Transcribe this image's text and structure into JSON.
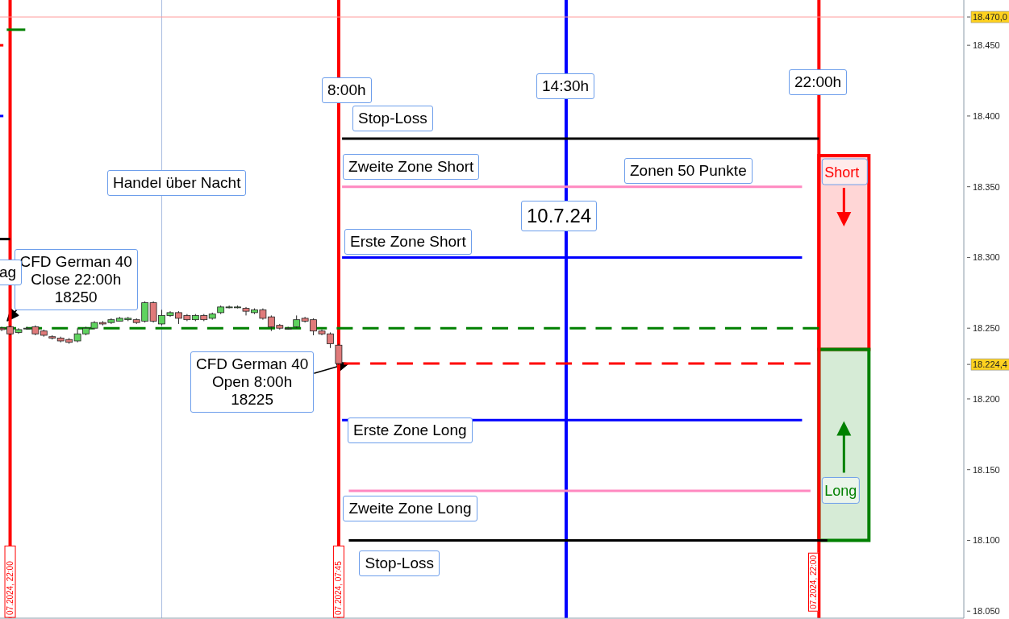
{
  "chart_data": {
    "type": "candlestick",
    "x": [
      "2024-07-09T21:45",
      "2024-07-09T22:00",
      "2024-07-09T22:15",
      "2024-07-09T22:30",
      "2024-07-09T22:45",
      "2024-07-09T23:00",
      "2024-07-09T23:15",
      "2024-07-09T23:30",
      "2024-07-09T23:45",
      "2024-07-10T00:00",
      "2024-07-10T00:15",
      "2024-07-10T00:30",
      "2024-07-10T00:45",
      "2024-07-10T01:00",
      "2024-07-10T01:15",
      "2024-07-10T01:30",
      "2024-07-10T01:45",
      "2024-07-10T02:00",
      "2024-07-10T02:15",
      "2024-07-10T02:30",
      "2024-07-10T02:45",
      "2024-07-10T03:00",
      "2024-07-10T03:15",
      "2024-07-10T03:30",
      "2024-07-10T03:45",
      "2024-07-10T04:00",
      "2024-07-10T04:15",
      "2024-07-10T04:30",
      "2024-07-10T04:45",
      "2024-07-10T05:00",
      "2024-07-10T05:15",
      "2024-07-10T05:30",
      "2024-07-10T05:45",
      "2024-07-10T06:00",
      "2024-07-10T06:15",
      "2024-07-10T06:30",
      "2024-07-10T06:45",
      "2024-07-10T07:00",
      "2024-07-10T07:15",
      "2024-07-10T07:30",
      "2024-07-10T07:45"
    ],
    "ohlc": [
      [
        18250,
        18251,
        18248,
        18249
      ],
      [
        18251,
        18252,
        18245,
        18246
      ],
      [
        18247,
        18250,
        18246,
        18249
      ],
      [
        18250,
        18251,
        18249,
        18250
      ],
      [
        18251,
        18252,
        18245,
        18246
      ],
      [
        18248,
        18249,
        18244,
        18245
      ],
      [
        18244,
        18245,
        18242,
        18243
      ],
      [
        18243,
        18244,
        18240,
        18241
      ],
      [
        18242,
        18243,
        18239,
        18240
      ],
      [
        18241,
        18250,
        18240,
        18246
      ],
      [
        18246,
        18251,
        18245,
        18250
      ],
      [
        18250,
        18255,
        18249,
        18254
      ],
      [
        18254,
        18255,
        18252,
        18253
      ],
      [
        18254,
        18257,
        18253,
        18256
      ],
      [
        18255,
        18258,
        18255,
        18257
      ],
      [
        18256,
        18258,
        18255,
        18257
      ],
      [
        18256,
        18257,
        18253,
        18254
      ],
      [
        18255,
        18269,
        18254,
        18268
      ],
      [
        18268,
        18269,
        18254,
        18255
      ],
      [
        18253,
        18263,
        18252,
        18259
      ],
      [
        18259,
        18262,
        18258,
        18261
      ],
      [
        18261,
        18262,
        18253,
        18257
      ],
      [
        18259,
        18260,
        18255,
        18256
      ],
      [
        18256,
        18260,
        18255,
        18259
      ],
      [
        18259,
        18260,
        18255,
        18256
      ],
      [
        18257,
        18261,
        18256,
        18260
      ],
      [
        18261,
        18266,
        18260,
        18265
      ],
      [
        18265,
        18266,
        18264,
        18265
      ],
      [
        18265,
        18266,
        18264,
        18265
      ],
      [
        18264,
        18265,
        18259,
        18262
      ],
      [
        18261,
        18264,
        18260,
        18263
      ],
      [
        18263,
        18264,
        18256,
        18257
      ],
      [
        18258,
        18259,
        18248,
        18251
      ],
      [
        18252,
        18253,
        18249,
        18250
      ],
      [
        18250,
        18251,
        18249,
        18250
      ],
      [
        18251,
        18259,
        18250,
        18256
      ],
      [
        18257,
        18258,
        18254,
        18255
      ],
      [
        18256,
        18257,
        18245,
        18248
      ],
      [
        18248,
        18249,
        18245,
        18246
      ],
      [
        18246,
        18247,
        18236,
        18239
      ],
      [
        18238,
        18239,
        18224,
        18225
      ]
    ],
    "series": [
      {
        "type": "line",
        "color": "#000000",
        "x": [
          "2024-07-10T07:51",
          "2024-07-10T22:00"
        ],
        "values": [
          18384,
          18384
        ]
      },
      {
        "type": "line",
        "color": "#ff88c0",
        "x": [
          "2024-07-10T07:51",
          "2024-07-10T21:30"
        ],
        "values": [
          18350,
          18350
        ]
      },
      {
        "type": "line",
        "color": "#0000ff",
        "x": [
          "2024-07-10T07:51",
          "2024-07-10T21:30"
        ],
        "values": [
          18300,
          18300
        ]
      },
      {
        "type": "line",
        "color": "#008000",
        "line_style": "dashed",
        "x": [
          "2024-07-09T21:42",
          "2024-07-10T22:00"
        ],
        "values": [
          18250,
          18250
        ]
      },
      {
        "type": "line",
        "color": "#ff0000",
        "line_style": "dashed",
        "x": [
          "2024-07-10T07:54",
          "2024-07-10T21:45"
        ],
        "values": [
          18225,
          18225
        ]
      },
      {
        "type": "line",
        "color": "#0000ff",
        "x": [
          "2024-07-10T07:51",
          "2024-07-10T21:30"
        ],
        "values": [
          18185,
          18185
        ]
      },
      {
        "type": "line",
        "color": "#ff88c0",
        "x": [
          "2024-07-10T08:03",
          "2024-07-10T21:45"
        ],
        "values": [
          18135,
          18135
        ]
      },
      {
        "type": "line",
        "color": "#000000",
        "x": [
          "2024-07-10T08:03",
          "2024-07-10T22:15"
        ],
        "values": [
          18100,
          18100
        ]
      },
      {
        "type": "line",
        "color": "#000000",
        "x": [
          "2024-07-09T21:42",
          "2024-07-09T22:00"
        ],
        "values": [
          18313,
          18313
        ]
      },
      {
        "type": "line",
        "color": "#ff0000",
        "x": [
          "2024-07-09T21:42",
          "2024-07-09T21:48"
        ],
        "values": [
          18450,
          18450
        ]
      },
      {
        "type": "line",
        "color": "#0000ff",
        "x": [
          "2024-07-09T21:42",
          "2024-07-09T21:48"
        ],
        "values": [
          18400,
          18400
        ]
      },
      {
        "type": "line",
        "color": "#008000",
        "x": [
          "2024-07-09T21:54",
          "2024-07-09T22:27"
        ],
        "values": [
          18461,
          18461
        ]
      }
    ],
    "marker": "none",
    "xlim": [
      "2024-07-09T21:42",
      "2024-07-11T02:18"
    ],
    "xticks": [
      {
        "value": "2024-07-09T22:00",
        "label": "07.2024, 22:00"
      },
      {
        "value": "2024-07-10T07:45",
        "label": "07.2024, 07:45"
      }
    ],
    "ylim": [
      18045,
      18482
    ],
    "yticks": [
      {
        "value": 18050,
        "label": "18.050"
      },
      {
        "value": 18100,
        "label": "18.100"
      },
      {
        "value": 18150,
        "label": "18.150"
      },
      {
        "value": 18200,
        "label": "18.200"
      },
      {
        "value": 18224.4,
        "label": "18.224,4"
      },
      {
        "value": 18250,
        "label": "18.250"
      },
      {
        "value": 18300,
        "label": "18.300"
      },
      {
        "value": 18350,
        "label": "18.350"
      },
      {
        "value": 18400,
        "label": "18.400"
      },
      {
        "value": 18450,
        "label": "18.450"
      },
      {
        "value": 18470,
        "label": "18.470,0"
      }
    ],
    "ref_lines": [
      {
        "axis": "x",
        "value": "2024-07-09T22:00",
        "color": "#ff0000"
      },
      {
        "axis": "x",
        "value": "2024-07-10T07:45",
        "color": "#ff0000"
      },
      {
        "axis": "x",
        "value": "2024-07-10T14:30",
        "color": "#0000ff"
      },
      {
        "axis": "x",
        "value": "2024-07-10T22:00",
        "color": "#ff0000"
      },
      {
        "axis": "x",
        "value": "2024-07-10T02:30",
        "color": "#a8bce0"
      },
      {
        "axis": "y",
        "value": 18470,
        "color": "#ff9a9a"
      }
    ],
    "bands": [
      {
        "axis": "y",
        "from": 18235,
        "to": 18372,
        "label": "Short",
        "color": "#ff0000"
      },
      {
        "axis": "y",
        "from": 18100,
        "to": 18235,
        "label": "Long",
        "color": "#008000"
      }
    ],
    "annotations": [
      {
        "text": "CFD German 40\nClose 22:00h\n18250",
        "x": "2024-07-09T22:00",
        "y": 18250
      },
      {
        "text": "CFD German 40\nOpen 8:00h\n18225",
        "x": "2024-07-10T07:45",
        "y": 18225
      },
      {
        "text": "Stop-Loss",
        "x": "2024-07-10T07:51",
        "y": 18384
      },
      {
        "text": "Zweite Zone Short",
        "x": "2024-07-10T07:51",
        "y": 18350
      },
      {
        "text": "Erste Zone Short",
        "x": "2024-07-10T07:51",
        "y": 18300
      },
      {
        "text": "Erste Zone Long",
        "x": "2024-07-10T07:51",
        "y": 18185
      },
      {
        "text": "Zweite Zone Long",
        "x": "2024-07-10T08:03",
        "y": 18135
      },
      {
        "text": "Stop-Loss",
        "x": "2024-07-10T08:03",
        "y": 18100
      },
      "Handel über Nacht",
      "10.7.24",
      "Zonen 50 Punkte",
      "ag",
      "8:00h",
      "14:30h",
      "22:00h",
      "07.2024, 22:00"
    ]
  }
}
